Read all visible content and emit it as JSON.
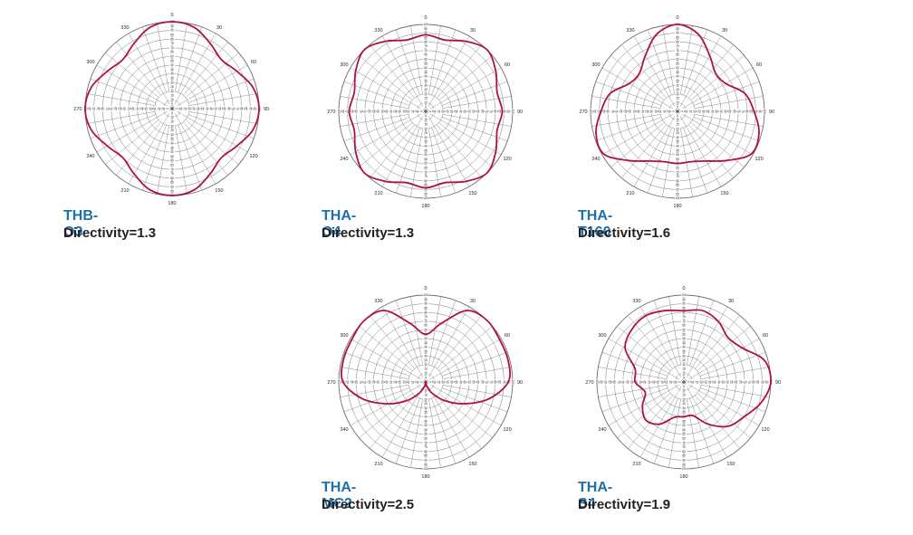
{
  "colors": {
    "curve": "#b0123f",
    "grid": "#6d6e71",
    "model_label": "#1f6fa8",
    "text": "#231f20"
  },
  "angle_labels": [
    "0",
    "30",
    "60",
    "90",
    "120",
    "150",
    "180",
    "210",
    "240",
    "270",
    "300",
    "330"
  ],
  "radial_tick_labels": [
    "0",
    "5",
    "10",
    "15",
    "20",
    "25",
    "30",
    "35",
    "40",
    "45",
    "50",
    "55",
    "60",
    "65",
    "70",
    "75",
    "80",
    "85",
    "90",
    "95",
    "100"
  ],
  "chart_data": [
    {
      "type": "polar-line",
      "model": "THB-O3",
      "directivity_text": "Directivity=1.3",
      "rlim": [
        0,
        100
      ],
      "grid": true,
      "theta_deg": [
        0,
        15,
        30,
        45,
        60,
        75,
        90,
        105,
        120,
        135,
        150,
        165,
        180,
        195,
        210,
        225,
        240,
        255,
        270,
        285,
        300,
        315,
        330,
        345
      ],
      "r": [
        100,
        97,
        87,
        80,
        86,
        96,
        100,
        96,
        86,
        80,
        87,
        97,
        100,
        97,
        87,
        80,
        86,
        96,
        100,
        96,
        86,
        80,
        87,
        97
      ]
    },
    {
      "type": "polar-line",
      "model": "THA-O4",
      "directivity_text": "Directivity=1.3",
      "rlim": [
        0,
        100
      ],
      "grid": true,
      "theta_deg": [
        0,
        15,
        30,
        45,
        60,
        75,
        90,
        105,
        120,
        135,
        150,
        165,
        180,
        195,
        210,
        225,
        240,
        255,
        270,
        285,
        300,
        315,
        330,
        345
      ],
      "r": [
        88,
        85,
        93,
        100,
        93,
        85,
        88,
        85,
        93,
        100,
        93,
        85,
        88,
        85,
        93,
        100,
        93,
        85,
        88,
        85,
        93,
        100,
        93,
        85
      ]
    },
    {
      "type": "polar-line",
      "model": "THA-T160",
      "directivity_text": "Directivity=1.6",
      "rlim": [
        0,
        100
      ],
      "grid": true,
      "theta_deg": [
        0,
        15,
        30,
        45,
        60,
        75,
        90,
        105,
        120,
        135,
        150,
        165,
        180,
        195,
        210,
        225,
        240,
        255,
        270,
        285,
        300,
        315,
        330,
        345
      ],
      "r": [
        100,
        92,
        74,
        62,
        64,
        80,
        88,
        97,
        98,
        80,
        66,
        60,
        60,
        60,
        66,
        80,
        98,
        97,
        88,
        80,
        64,
        62,
        74,
        92
      ]
    },
    {
      "type": "polar-line",
      "model": "THA-MC2",
      "directivity_text": "Directivity=2.5",
      "rlim": [
        0,
        100
      ],
      "grid": true,
      "theta_deg": [
        0,
        15,
        30,
        45,
        60,
        75,
        90,
        105,
        120,
        135,
        150,
        165,
        180,
        195,
        210,
        225,
        240,
        255,
        270,
        285,
        300,
        315,
        330,
        345
      ],
      "r": [
        55,
        70,
        95,
        100,
        98,
        98,
        95,
        75,
        50,
        30,
        15,
        5,
        0,
        5,
        15,
        30,
        50,
        75,
        95,
        98,
        98,
        100,
        95,
        70
      ]
    },
    {
      "type": "polar-line",
      "model": "THA-S4",
      "directivity_text": "Directivity=1.9",
      "rlim": [
        0,
        100
      ],
      "grid": true,
      "theta_deg": [
        0,
        15,
        30,
        45,
        60,
        75,
        90,
        105,
        120,
        135,
        150,
        165,
        180,
        195,
        210,
        225,
        240,
        255,
        270,
        285,
        300,
        315,
        330,
        345
      ],
      "r": [
        82,
        85,
        80,
        72,
        78,
        96,
        100,
        92,
        80,
        72,
        56,
        40,
        40,
        42,
        56,
        62,
        55,
        46,
        56,
        58,
        78,
        85,
        88,
        85
      ]
    }
  ]
}
